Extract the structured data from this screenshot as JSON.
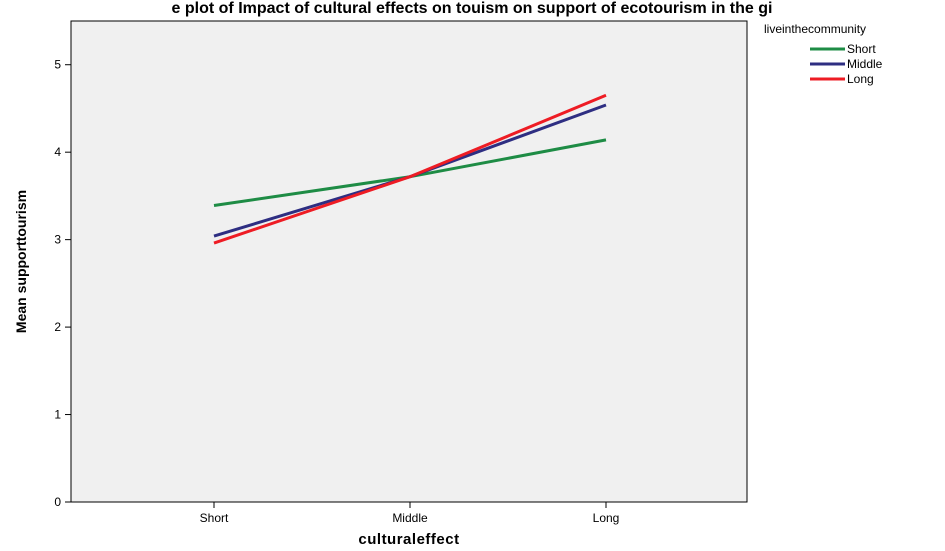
{
  "chart_data": {
    "type": "line",
    "title": "e plot of Impact of cultural effects on touism on support of ecotourism in the gi",
    "xlabel": "culturaleffect",
    "ylabel": "Mean supporttourism",
    "categories": [
      "Short",
      "Middle",
      "Long"
    ],
    "ylim": [
      0,
      5.5
    ],
    "yticks": [
      0,
      1,
      2,
      3,
      4,
      5
    ],
    "grid": false,
    "legend": {
      "title": "liveinthecommunity",
      "placement": "top-right, outside plot"
    },
    "series": [
      {
        "name": "Short",
        "color": "#1e8c45",
        "values": [
          3.39,
          3.72,
          4.14
        ]
      },
      {
        "name": "Middle",
        "color": "#2e2e82",
        "values": [
          3.04,
          3.72,
          4.54
        ]
      },
      {
        "name": "Long",
        "color": "#ee1c24",
        "values": [
          2.96,
          3.72,
          4.65
        ]
      }
    ]
  }
}
